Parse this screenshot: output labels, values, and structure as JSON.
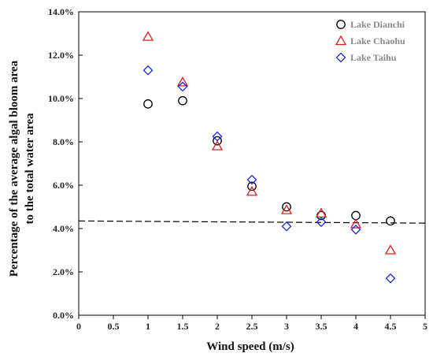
{
  "chart_data": {
    "type": "scatter",
    "title": "",
    "xlabel": "Wind speed (m/s)",
    "ylabel_line1": "Percentage of the average algal bloom area",
    "ylabel_line2": "to the total water area",
    "xlim": [
      0,
      5
    ],
    "ylim": [
      0,
      14
    ],
    "x_ticks": [
      "0",
      "0.5",
      "1",
      "1.5",
      "2",
      "2.5",
      "3",
      "3.5",
      "4",
      "4.5",
      "5"
    ],
    "y_ticks": [
      "0.0%",
      "2.0%",
      "4.0%",
      "6.0%",
      "8.0%",
      "10.0%",
      "12.0%",
      "14.0%"
    ],
    "grid": false,
    "legend_position": "top-right",
    "reference_line": {
      "style": "dashed",
      "color": "#000000",
      "x": [
        0,
        5
      ],
      "y": [
        4.35,
        4.25
      ]
    },
    "series": [
      {
        "name": "Lake Dianchi",
        "marker": "circle",
        "color": "#000000",
        "x": [
          1,
          1.5,
          2,
          2.5,
          3,
          3.5,
          4,
          4.5
        ],
        "y": [
          9.75,
          9.9,
          8.05,
          5.95,
          5.0,
          4.6,
          4.6,
          4.35
        ]
      },
      {
        "name": "Lake Chaohu",
        "marker": "triangle",
        "color": "#d62020",
        "x": [
          1,
          1.5,
          2,
          2.5,
          3,
          3.5,
          4,
          4.5
        ],
        "y": [
          12.85,
          10.75,
          7.8,
          5.7,
          4.85,
          4.7,
          4.2,
          3.0
        ]
      },
      {
        "name": "Lake Taihu",
        "marker": "diamond",
        "color": "#1f2ad8",
        "x": [
          1,
          1.5,
          2,
          2.5,
          3,
          3.5,
          4,
          4.5
        ],
        "y": [
          11.3,
          10.55,
          8.25,
          6.25,
          4.1,
          4.3,
          3.95,
          1.7
        ]
      }
    ]
  }
}
